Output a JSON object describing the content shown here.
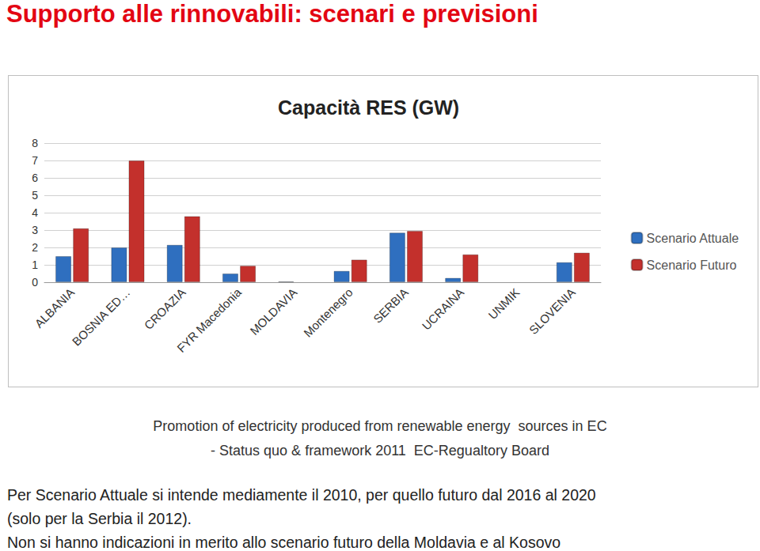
{
  "header": {
    "title": "Supporto alle rinnovabili: scenari e previsioni"
  },
  "chart_data": {
    "type": "bar",
    "title": "Capacità RES (GW)",
    "categories": [
      "ALBANIA",
      "BOSNIA ED…",
      "CROAZIA",
      "FYR Macedonia",
      "MOLDAVIA",
      "Montenegro",
      "SERBIA",
      "UCRAINA",
      "UNMIK",
      "SLOVENIA"
    ],
    "series": [
      {
        "name": "Scenario Attuale",
        "color": "#2F6FBF",
        "values": [
          1.5,
          2.0,
          2.15,
          0.5,
          0.05,
          0.65,
          2.85,
          0.25,
          null,
          1.15
        ]
      },
      {
        "name": "Scenario Futuro",
        "color": "#C3302C",
        "values": [
          3.1,
          7.0,
          3.8,
          0.95,
          null,
          1.3,
          2.95,
          1.6,
          null,
          1.7
        ]
      }
    ],
    "ylim": [
      0,
      8
    ],
    "yticks": [
      0,
      1,
      2,
      3,
      4,
      5,
      6,
      7,
      8
    ],
    "grid": true,
    "legend": "right"
  },
  "footer": {
    "source": [
      "Promotion of electricity produced from renewable energy  sources in EC",
      "- Status quo & framework 2011  EC-Regualtory Board"
    ],
    "notes": [
      "Per Scenario Attuale si intende mediamente il 2010, per quello futuro dal 2016 al 2020",
      "(solo per la Serbia il 2012).",
      "Non si hanno indicazioni in merito allo scenario futuro della Moldavia e al Kosovo"
    ]
  }
}
